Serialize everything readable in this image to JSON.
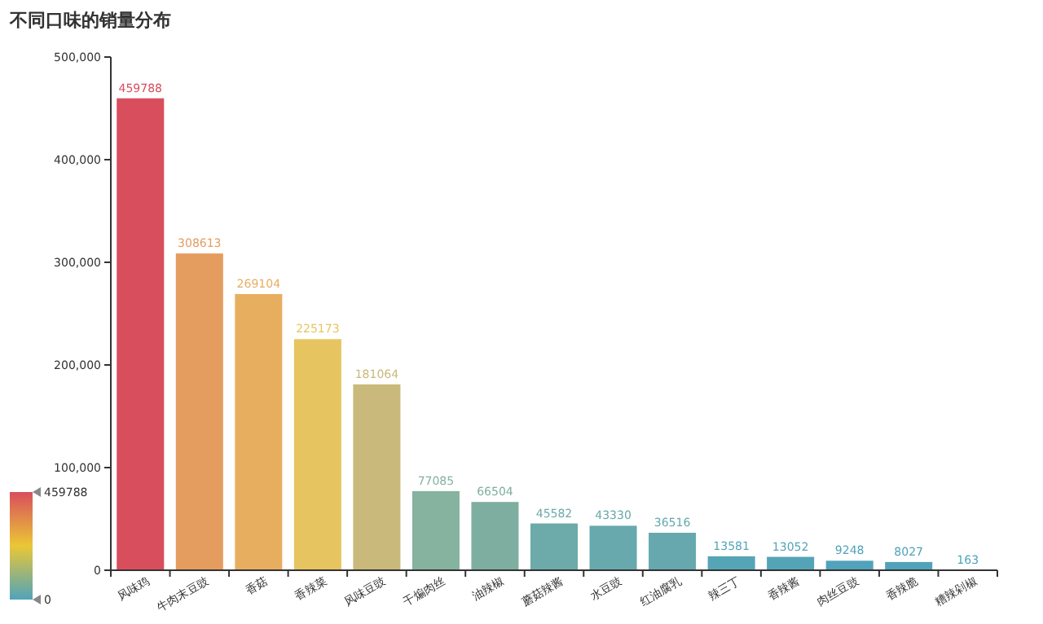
{
  "chart_data": {
    "type": "bar",
    "title": "不同口味的销量分布",
    "categories": [
      "风味鸡",
      "牛肉末豆豉",
      "香菇",
      "香辣菜",
      "风味豆豉",
      "干煸肉丝",
      "油辣椒",
      "蘑菇辣酱",
      "水豆豉",
      "红油腐乳",
      "辣三丁",
      "香辣酱",
      "肉丝豆豉",
      "香辣脆",
      "糟辣剁椒"
    ],
    "values": [
      459788,
      308613,
      269104,
      225173,
      181064,
      77085,
      66504,
      45582,
      43330,
      36516,
      13581,
      13052,
      9248,
      8027,
      163
    ],
    "colors": [
      "#d94e5d",
      "#e59c5f",
      "#e8ae60",
      "#e6c560",
      "#c9b97a",
      "#86b2a0",
      "#7eaea0",
      "#6cabaa",
      "#68a9ad",
      "#66a8ae",
      "#55a5b6",
      "#54a4b7",
      "#50a3ba",
      "#50a3ba",
      "#4ea2bc"
    ],
    "ylim": [
      0,
      500000
    ],
    "yticks": [
      0,
      {
        "value": 100000,
        "label": "100,000"
      },
      {
        "value": 200000,
        "label": "200,000"
      },
      {
        "value": 300000,
        "label": "300,000"
      },
      {
        "value": 400000,
        "label": "400,000"
      },
      {
        "value": 500000,
        "label": "500,000"
      }
    ],
    "data_labels": true,
    "grid": false,
    "clim": [
      0,
      459788
    ],
    "cticks": [
      0,
      459788
    ]
  }
}
